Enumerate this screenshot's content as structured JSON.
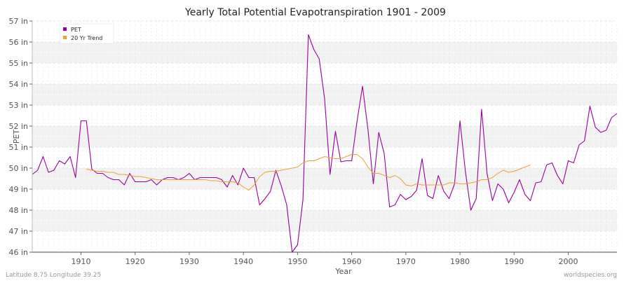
{
  "chart_data": {
    "type": "line",
    "title": "Yearly Total Potential Evapotranspiration 1901 - 2009",
    "xlabel": "Year",
    "ylabel": "PET",
    "xlim": [
      1901,
      2009
    ],
    "ylim": [
      46,
      57
    ],
    "x_ticks": [
      1910,
      1920,
      1930,
      1940,
      1950,
      1960,
      1970,
      1980,
      1990,
      2000
    ],
    "y_ticks": [
      46,
      47,
      48,
      49,
      50,
      51,
      52,
      53,
      54,
      55,
      56,
      57
    ],
    "y_tick_labels": [
      "46 in",
      "47 in",
      "48 in",
      "49 in",
      "50 in",
      "51 in",
      "52 in",
      "53 in",
      "54 in",
      "55 in",
      "56 in",
      "57 in"
    ],
    "grid": true,
    "legend_position": "top-left",
    "series": [
      {
        "name": "PET",
        "color": "#990099",
        "x_start": 1901,
        "values": [
          49.7,
          49.9,
          50.55,
          49.8,
          49.9,
          50.35,
          50.2,
          50.55,
          49.55,
          52.25,
          52.25,
          49.95,
          49.75,
          49.75,
          49.55,
          49.45,
          49.45,
          49.2,
          49.75,
          49.35,
          49.35,
          49.35,
          49.45,
          49.2,
          49.45,
          49.55,
          49.55,
          49.45,
          49.55,
          49.75,
          49.45,
          49.55,
          49.55,
          49.55,
          49.55,
          49.45,
          49.1,
          49.65,
          49.2,
          50.0,
          49.55,
          49.55,
          48.25,
          48.55,
          48.9,
          49.9,
          49.15,
          48.25,
          46.0,
          46.35,
          48.5,
          56.35,
          55.65,
          55.2,
          53.3,
          49.7,
          51.75,
          50.3,
          50.35,
          50.35,
          52.25,
          53.9,
          51.85,
          49.25,
          51.7,
          50.7,
          48.15,
          48.25,
          48.75,
          48.5,
          48.65,
          48.95,
          50.45,
          48.7,
          48.55,
          49.65,
          48.9,
          48.55,
          49.25,
          52.25,
          49.85,
          48.0,
          48.55,
          52.8,
          49.75,
          48.45,
          49.25,
          49.0,
          48.35,
          48.85,
          49.45,
          48.75,
          48.45,
          49.3,
          49.35,
          50.15,
          50.25,
          49.65,
          49.25,
          50.35,
          50.25,
          51.1,
          51.3,
          52.95,
          51.95,
          51.7,
          51.8,
          52.4,
          52.6
        ]
      },
      {
        "name": "20 Yr Trend",
        "color": "#f0a030",
        "x_start": 1911,
        "values": [
          49.95,
          49.9,
          49.85,
          49.85,
          49.8,
          49.8,
          49.7,
          49.7,
          49.65,
          49.6,
          49.6,
          49.55,
          49.5,
          49.45,
          49.45,
          49.45,
          49.45,
          49.45,
          49.45,
          49.45,
          49.45,
          49.45,
          49.45,
          49.4,
          49.4,
          49.35,
          49.35,
          49.35,
          49.3,
          49.1,
          48.95,
          49.2,
          49.6,
          49.8,
          49.85,
          49.85,
          49.9,
          49.95,
          50.0,
          50.05,
          50.25,
          50.35,
          50.35,
          50.45,
          50.55,
          50.5,
          50.45,
          50.45,
          50.55,
          50.65,
          50.65,
          50.45,
          50.05,
          49.75,
          49.75,
          49.65,
          49.55,
          49.65,
          49.5,
          49.2,
          49.15,
          49.25,
          49.2,
          49.2,
          49.2,
          49.2,
          49.2,
          49.3,
          49.3,
          49.25,
          49.25,
          49.3,
          49.35,
          49.45,
          49.45,
          49.55,
          49.75,
          49.9,
          49.8,
          49.85,
          49.95,
          50.05,
          50.15
        ]
      }
    ]
  },
  "footer": {
    "location": "Latitude 8.75 Longitude 39.25",
    "source": "worldspecies.org"
  },
  "legend": {
    "items": [
      "PET",
      "20 Yr Trend"
    ]
  }
}
